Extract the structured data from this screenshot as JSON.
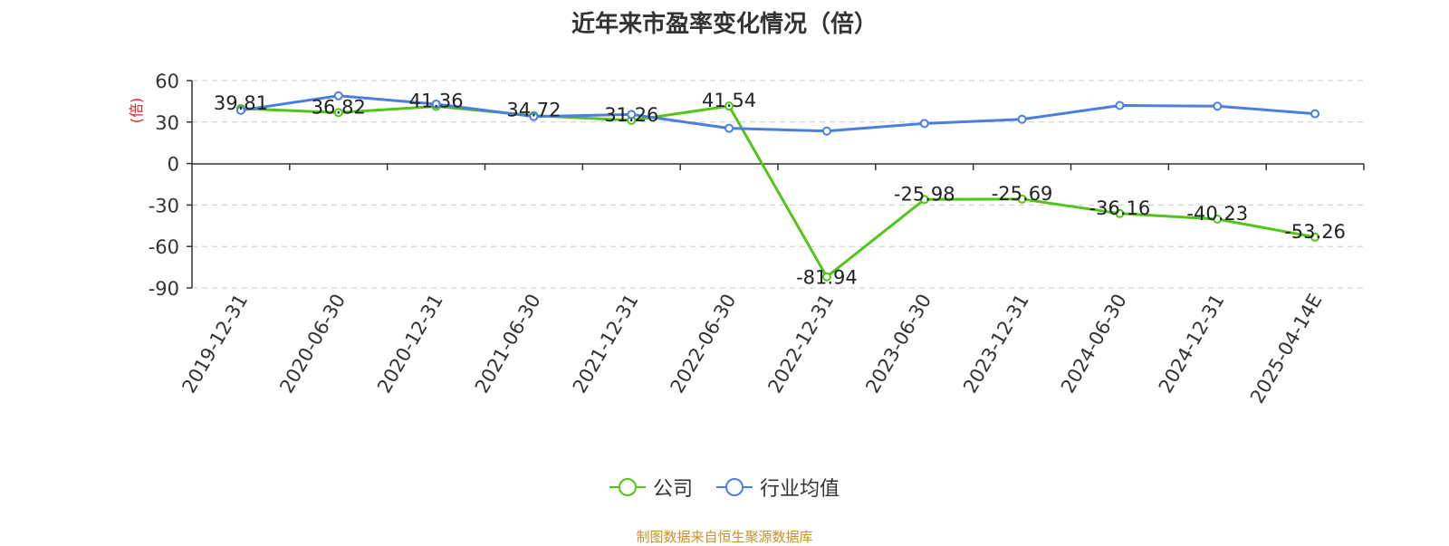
{
  "chart_data": {
    "type": "line",
    "title": "近年来市盈率变化情况（倍）",
    "ylabel": "(倍)",
    "ylim": [
      -90,
      60
    ],
    "yticks": [
      60,
      30,
      0,
      -30,
      -60,
      -90
    ],
    "grid": true,
    "legend_position": "bottom",
    "categories": [
      "2019-12-31",
      "2020-06-30",
      "2020-12-31",
      "2021-06-30",
      "2021-12-31",
      "2022-06-30",
      "2022-12-31",
      "2023-06-30",
      "2023-12-31",
      "2024-06-30",
      "2024-12-31",
      "2025-04-14E"
    ],
    "series": [
      {
        "name": "公司",
        "color": "#52c41a",
        "values": [
          39.81,
          36.82,
          41.36,
          34.72,
          31.26,
          41.54,
          -81.94,
          -25.98,
          -25.69,
          -36.16,
          -40.23,
          -53.26
        ],
        "labels": [
          "39.81",
          "36.82",
          "41.36",
          "34.72",
          "31.26",
          "41.54",
          "-81.94",
          "-25.98",
          "-25.69",
          "-36.16",
          "-40.23",
          "-53.26"
        ]
      },
      {
        "name": "行业均值",
        "color": "#4a7fe0",
        "values": [
          38.5,
          49.0,
          43.0,
          34.0,
          35.5,
          25.5,
          23.5,
          29.0,
          32.0,
          42.0,
          41.5,
          36.0
        ]
      }
    ]
  },
  "footer": {
    "source": "制图数据来自恒生聚源数据库"
  },
  "colors": {
    "axis_label": "#e02020",
    "source": "#c8912c",
    "grid": "#cccccc"
  }
}
